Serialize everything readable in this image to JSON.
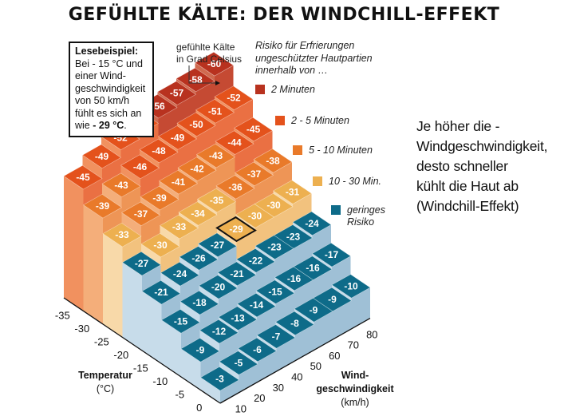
{
  "title": "GEFÜHLTE KÄLTE: DER WINDCHILL-EFFEKT",
  "example": {
    "heading": "Lesebeispiel:",
    "lines": [
      "Bei - 15 °C und",
      "einer Wind-",
      "geschwindigkeit",
      "von 50 km/h",
      "fühlt es sich an"
    ],
    "last_prefix": "wie ",
    "last_bold": "- 29 °C",
    "last_suffix": "."
  },
  "felt_label": [
    "gefühlte Kälte",
    "in Grad Celsius"
  ],
  "risk_title": [
    "Risiko für Erfrierungen",
    "ungeschützter Hautpartien",
    "innerhalb von …"
  ],
  "legend": [
    {
      "label": "2 Minuten",
      "color": "#b8321f"
    },
    {
      "label": "2 - 5 Minuten",
      "color": "#e4521c"
    },
    {
      "label": "5 - 10 Minuten",
      "color": "#e97a2a"
    },
    {
      "label": "10 - 30 Min.",
      "color": "#edb050"
    },
    {
      "label": "geringes",
      "label2": "Risiko",
      "color": "#0e6b89"
    }
  ],
  "side_text": [
    "Je höher die -",
    "Windgeschwindigkeit,",
    "desto schneller",
    "kühlt die Haut ab",
    "(Windchill-Effekt)"
  ],
  "axes": {
    "temperature_title": "Temperatur",
    "temperature_unit": "(°C)",
    "wind_title_1": "Wind-",
    "wind_title_2": "geschwindigkeit",
    "wind_unit": "(km/h)"
  },
  "chart_data": {
    "type": "heatmap",
    "title": "GEFÜHLTE KÄLTE: DER WINDCHILL-EFFEKT",
    "xlabel": "Windgeschwindigkeit (km/h)",
    "ylabel": "Temperatur (°C)",
    "x": [
      10,
      20,
      30,
      40,
      50,
      60,
      70,
      80
    ],
    "y": [
      0,
      -5,
      -10,
      -15,
      -20,
      -25,
      -30,
      -35
    ],
    "values": [
      [
        -3,
        -5,
        -6,
        -7,
        -8,
        -9,
        -9,
        -10
      ],
      [
        -9,
        -12,
        -13,
        -14,
        -15,
        -16,
        -16,
        -17
      ],
      [
        -15,
        -18,
        -20,
        -21,
        -22,
        -23,
        -23,
        -24
      ],
      [
        -21,
        -24,
        -26,
        -27,
        -29,
        -30,
        -30,
        -31
      ],
      [
        -27,
        -30,
        -33,
        -34,
        -35,
        -36,
        -37,
        -38
      ],
      [
        -33,
        -37,
        -39,
        -41,
        -42,
        -43,
        -44,
        -45
      ],
      [
        -39,
        -43,
        -46,
        -48,
        -49,
        -50,
        -51,
        -52
      ],
      [
        -45,
        -49,
        -52,
        -54,
        -56,
        -57,
        -58,
        -60
      ]
    ],
    "unit": "gefühlte Kälte in Grad Celsius",
    "highlight": {
      "temperature": -15,
      "wind": 50,
      "value": -29
    },
    "risk_classes": [
      {
        "label": "2 Minuten",
        "range": "<= -56"
      },
      {
        "label": "2 - 5 Minuten",
        "range": "-44 to -55"
      },
      {
        "label": "5 - 10 Minuten",
        "range": "-36 to -43"
      },
      {
        "label": "10 - 30 Min.",
        "range": "-28 to -35"
      },
      {
        "label": "geringes Risiko",
        "range": ">= -27"
      }
    ]
  }
}
